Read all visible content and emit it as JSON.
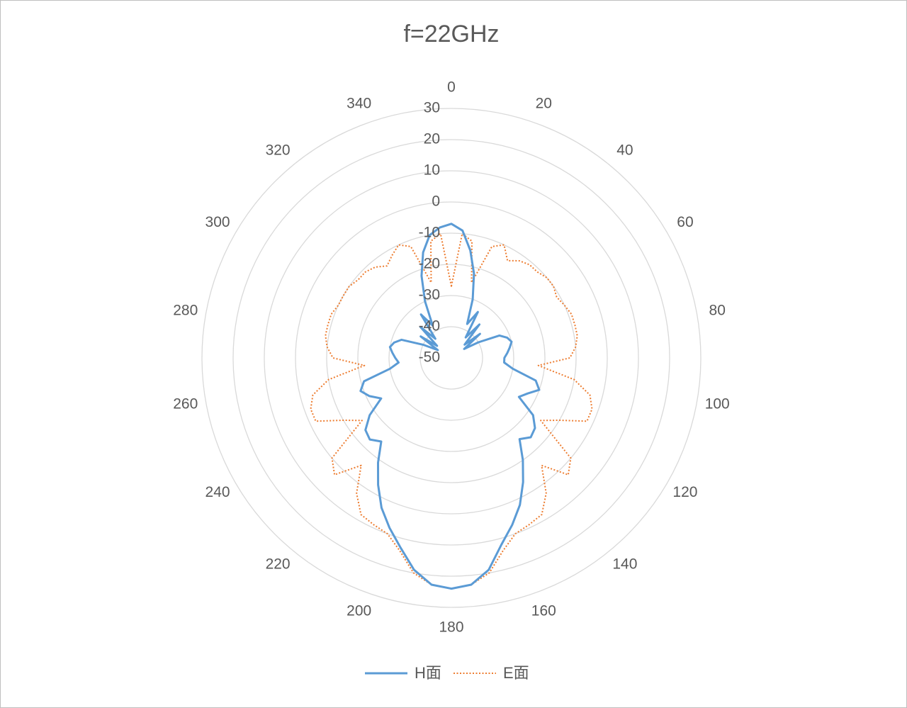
{
  "chart_data": {
    "type": "radar",
    "title": "f=22GHz",
    "categories": [
      0,
      null,
      null,
      null,
      20,
      null,
      null,
      null,
      40,
      null,
      null,
      null,
      60,
      null,
      null,
      null,
      80,
      null,
      null,
      null,
      100,
      null,
      null,
      null,
      120,
      null,
      null,
      null,
      140,
      null,
      null,
      null,
      160,
      null,
      null,
      null,
      180,
      null,
      null,
      null,
      200,
      null,
      null,
      null,
      220,
      null,
      null,
      null,
      240,
      null,
      null,
      null,
      260,
      null,
      null,
      null,
      280,
      null,
      null,
      null,
      300,
      null,
      null,
      null,
      320,
      null,
      null,
      null,
      340,
      null,
      null,
      null
    ],
    "series": [
      {
        "name": "H面",
        "color": "#5b9bd5",
        "line_style": "solid",
        "values": [
          -7,
          -9,
          -15,
          -22,
          -30,
          -38,
          -33,
          -42,
          -36,
          -44,
          -38,
          -45,
          -40,
          -33,
          -31,
          -30,
          -31,
          -32,
          -33,
          -33,
          -30,
          -22,
          -20,
          -23,
          -25,
          -18,
          -15,
          -14,
          -16,
          -10,
          -4,
          2,
          7,
          12,
          19,
          23,
          24,
          23,
          19,
          13,
          8,
          3,
          -3,
          -9,
          -15,
          -13,
          -14,
          -18,
          -24,
          -21,
          -19,
          -21,
          -30,
          -33,
          -32,
          -31,
          -30,
          -31,
          -33,
          -40,
          -45,
          -38,
          -44,
          -36,
          -42,
          -33,
          -38,
          -30,
          -22,
          -15,
          -10,
          -8
        ]
      },
      {
        "name": "E面",
        "color": "#ed7d31",
        "line_style": "dotted",
        "values": [
          -27,
          -10,
          -12,
          -25,
          -12,
          -10,
          -14,
          -12,
          -11,
          -11,
          -10,
          -10,
          -11,
          -10,
          -9,
          -9,
          -9,
          -10,
          -12,
          -22,
          -10,
          -4,
          -2,
          -2,
          -10,
          -15,
          0,
          3,
          -5,
          3,
          8,
          9,
          10,
          14,
          20,
          23,
          24,
          23,
          20,
          14,
          10,
          9,
          8,
          3,
          -5,
          3,
          0,
          -15,
          -10,
          -2,
          -2,
          -4,
          -10,
          -22,
          -12,
          -10,
          -9,
          -9,
          -9,
          -10,
          -10,
          -10,
          -11,
          -11,
          -12,
          -14,
          -12,
          -10,
          -12,
          -25,
          -12,
          -10
        ]
      }
    ],
    "ylim": [
      -50,
      30
    ],
    "yticks": [
      -50,
      -40,
      -30,
      -20,
      -10,
      0,
      10,
      20,
      30
    ],
    "grid": true,
    "legend": "bottom"
  }
}
